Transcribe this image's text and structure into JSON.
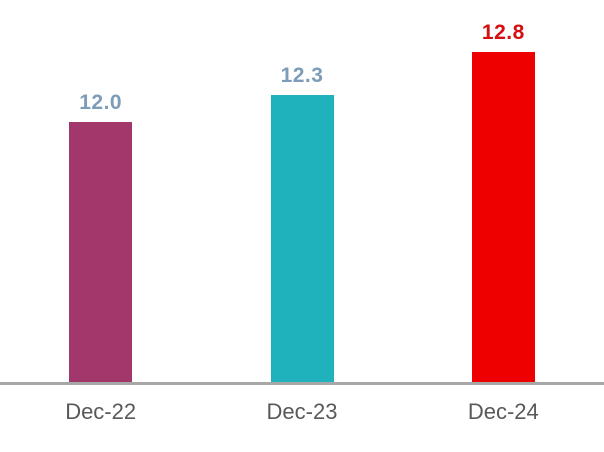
{
  "chart_data": {
    "type": "bar",
    "title": "",
    "categories": [
      "Dec-22",
      "Dec-23",
      "Dec-24"
    ],
    "values": [
      12.0,
      12.3,
      12.8
    ],
    "value_labels": [
      "12.0",
      "12.3",
      "12.8"
    ],
    "bar_colors": [
      "#a1376a",
      "#1fb2bd",
      "#ee0000"
    ],
    "value_label_colors": [
      "#7d9cb8",
      "#7d9cb8",
      "#d40f0f"
    ],
    "category_label_color": "#595959",
    "axis_line_color": "#a7a7a7",
    "xlabel": "",
    "ylabel": "",
    "ylim": [
      9,
      13.4
    ],
    "grid": false,
    "legend": false
  }
}
